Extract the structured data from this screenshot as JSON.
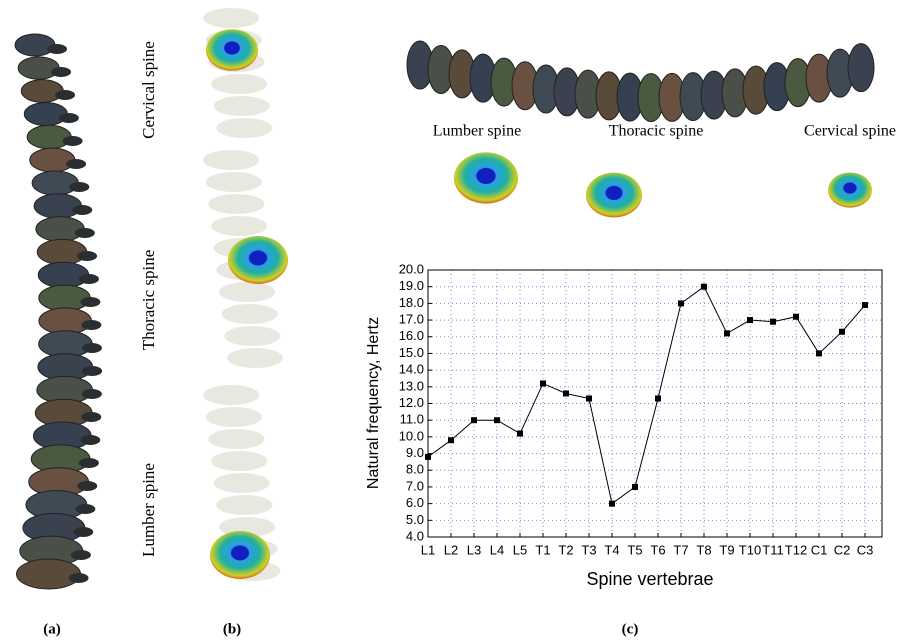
{
  "chart_data": {
    "type": "line",
    "x_label": "Spine vertebrae",
    "y_label": "Natural frequency, Hertz",
    "categories": [
      "L1",
      "L2",
      "L3",
      "L4",
      "L5",
      "T1",
      "T2",
      "T3",
      "T4",
      "T5",
      "T6",
      "T7",
      "T8",
      "T9",
      "T10",
      "T11",
      "T12",
      "C1",
      "C2",
      "C3"
    ],
    "values": [
      8.8,
      9.8,
      11.0,
      11.0,
      10.2,
      13.2,
      12.6,
      12.3,
      6.0,
      7.0,
      12.3,
      18.0,
      19.0,
      16.2,
      17.0,
      16.9,
      17.2,
      15.0,
      16.3,
      17.9
    ],
    "color": "#000000",
    "ylim": [
      4,
      20
    ],
    "yticks": [
      {
        "value": 4,
        "label": "4.0"
      },
      {
        "value": 5,
        "label": "5.0"
      },
      {
        "value": 6,
        "label": "6.0"
      },
      {
        "value": 7,
        "label": "7.0"
      },
      {
        "value": 8,
        "label": "8.0"
      },
      {
        "value": 9,
        "label": "9.0"
      },
      {
        "value": 10,
        "label": "10.0"
      },
      {
        "value": 11,
        "label": "11.0"
      },
      {
        "value": 12,
        "label": "12.0"
      },
      {
        "value": 13,
        "label": "13.0"
      },
      {
        "value": 14,
        "label": "14.0"
      },
      {
        "value": 15,
        "label": "15.0"
      },
      {
        "value": 16,
        "label": "16.0"
      },
      {
        "value": 17,
        "label": "17.0"
      },
      {
        "value": 18,
        "label": "18.0"
      },
      {
        "value": 19,
        "label": "19.0"
      },
      {
        "value": 20,
        "label": "20.0"
      }
    ],
    "grid": true
  },
  "panels": {
    "a": {
      "label": "(a)"
    },
    "b": {
      "label": "(b)",
      "views": [
        "Cervical spine",
        "Thoracic spine",
        "Lumber spine"
      ]
    },
    "c": {
      "label": "(c)",
      "views": [
        "Lumber spine",
        "Thoracic spine",
        "Cervical spine"
      ]
    }
  }
}
